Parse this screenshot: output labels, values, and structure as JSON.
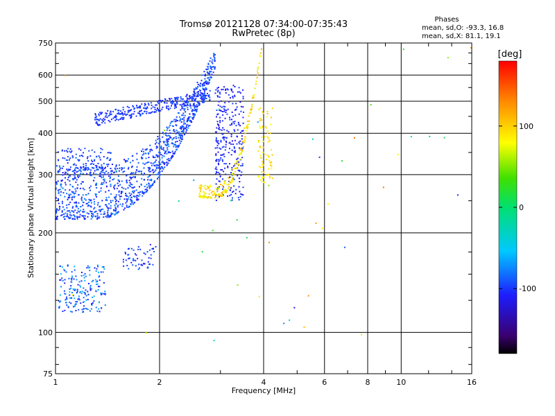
{
  "chart_data": {
    "type": "scatter",
    "title": "Tromsø 20121128 07:34:00-07:35:43",
    "subtitle": "RwPretec (8p)",
    "xlabel": "Frequency [MHz]",
    "ylabel": "Stationary phase Virtual Height [km]",
    "x_scale": "log",
    "y_scale": "log",
    "xlim": [
      1,
      16
    ],
    "ylim": [
      75,
      750
    ],
    "x_ticks": [
      1,
      2,
      4,
      6,
      8,
      10,
      16
    ],
    "y_ticks": [
      75,
      100,
      200,
      300,
      400,
      500,
      600,
      750
    ],
    "grid": true,
    "phase_stats": {
      "title": "Phases",
      "line_o": "mean, sd,O: -93.3, 16.8",
      "line_x": "mean, sd,X: 81.1, 19.1"
    },
    "colorbar": {
      "label": "[deg]",
      "ticks": [
        100,
        0,
        -100
      ],
      "range": [
        -180,
        180
      ]
    },
    "series": [
      {
        "x_range": [
          1.0,
          2.9
        ],
        "y_min_curve": 220,
        "curvature": 0.85,
        "y_spread": [
          0,
          100
        ],
        "phase": [
          -115,
          -75
        ],
        "count": 1150
      },
      {
        "x_range": [
          1.0,
          1.45
        ],
        "y_center": 330,
        "x_jitter": 0.02,
        "y_spread": [
          -30,
          30
        ],
        "phase": [
          -110,
          -85
        ],
        "count": 120
      },
      {
        "x_range": [
          1.3,
          2.8
        ],
        "y_start": 440,
        "y_end": 520,
        "y_spread": [
          -20,
          20
        ],
        "phase": [
          -110,
          -90
        ],
        "count": 310
      },
      {
        "x_range": [
          2.9,
          3.5
        ],
        "y_range": [
          250,
          560
        ],
        "phase": [
          -120,
          -95
        ],
        "count": 300
      },
      {
        "x_range": [
          2.6,
          4.3
        ],
        "y_min_curve": 255,
        "curvature": 1.4,
        "y_spread": [
          0,
          25
        ],
        "phase": [
          65,
          115
        ],
        "count": 260
      },
      {
        "x_range": [
          3.85,
          4.25
        ],
        "y_range": [
          280,
          480
        ],
        "phase": [
          75,
          110
        ],
        "count": 80
      },
      {
        "x_range": [
          1.02,
          1.4
        ],
        "y_range": [
          115,
          160
        ],
        "phase": [
          -115,
          -55
        ],
        "count": 190
      },
      {
        "x_range": [
          1.55,
          1.95
        ],
        "y_range": [
          155,
          185
        ],
        "phase": [
          -115,
          -85
        ],
        "count": 60
      },
      {
        "x_range": [
          1.0,
          16
        ],
        "y_range": [
          75,
          750
        ],
        "phase": [
          -120,
          140
        ],
        "count": 45
      }
    ]
  }
}
